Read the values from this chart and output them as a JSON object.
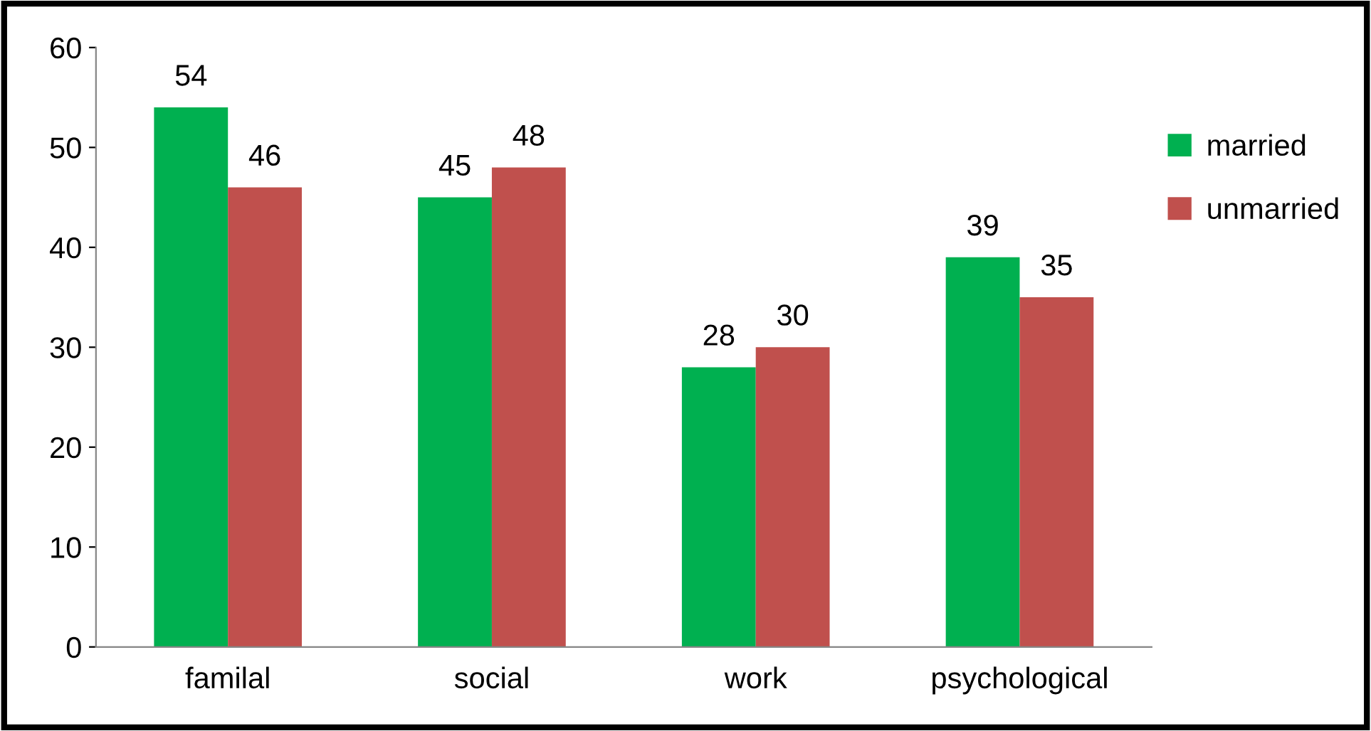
{
  "chart_data": {
    "type": "bar",
    "categories": [
      "familal",
      "social",
      "work",
      "psychological"
    ],
    "series": [
      {
        "name": "married",
        "color": "#00b050",
        "values": [
          54,
          45,
          28,
          39
        ]
      },
      {
        "name": "unmarried",
        "color": "#c0504d",
        "values": [
          46,
          48,
          30,
          35
        ]
      }
    ],
    "ylim": [
      0,
      60
    ],
    "yticks": [
      0,
      10,
      20,
      30,
      40,
      50,
      60
    ],
    "data_labels": true,
    "legend": "right",
    "grid": false
  }
}
